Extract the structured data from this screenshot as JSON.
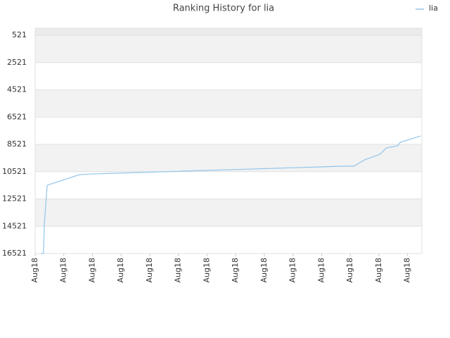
{
  "chart_data": {
    "type": "line",
    "title": "Ranking History for lia",
    "series": [
      {
        "name": "lia",
        "color": "#92c5eb",
        "x": [
          0.2,
          0.29,
          0.32,
          0.42,
          1.55,
          1.97,
          2.7,
          3.56,
          4.37,
          5.16,
          5.95,
          6.76,
          7.54,
          8.35,
          9.14,
          9.95,
          10.74,
          11.13,
          11.5,
          12.04,
          12.26,
          12.65,
          12.75,
          13.46
        ],
        "values": [
          16521,
          16521,
          14350,
          11515,
          10740,
          10690,
          10640,
          10590,
          10535,
          10480,
          10430,
          10380,
          10330,
          10275,
          10225,
          10170,
          10120,
          10120,
          9655,
          9245,
          8780,
          8625,
          8365,
          7900
        ]
      }
    ],
    "ylim": [
      16521,
      0
    ],
    "yticks": [
      521,
      2521,
      4521,
      6521,
      8521,
      10521,
      12521,
      14521,
      16521
    ],
    "xlim": [
      0,
      13.5
    ],
    "xticks": [
      {
        "value": 0,
        "label": "Aug18"
      },
      {
        "value": 1,
        "label": "Aug18"
      },
      {
        "value": 2,
        "label": "Aug18"
      },
      {
        "value": 3,
        "label": "Aug18"
      },
      {
        "value": 4,
        "label": "Aug18"
      },
      {
        "value": 5,
        "label": "Aug18"
      },
      {
        "value": 6,
        "label": "Aug18"
      },
      {
        "value": 7,
        "label": "Aug18"
      },
      {
        "value": 8,
        "label": "Aug18"
      },
      {
        "value": 9,
        "label": "Aug18"
      },
      {
        "value": 10,
        "label": "Aug18"
      },
      {
        "value": 11,
        "label": "Aug18"
      },
      {
        "value": 12,
        "label": "Aug18"
      },
      {
        "value": 13,
        "label": "Aug18"
      }
    ],
    "grid": true,
    "legend": "top-right"
  }
}
